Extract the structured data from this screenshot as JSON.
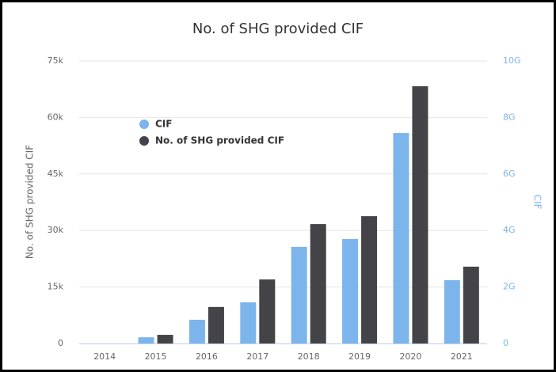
{
  "chart_data": {
    "type": "bar",
    "title": "No. of SHG provided CIF",
    "categories": [
      "2014",
      "2015",
      "2016",
      "2017",
      "2018",
      "2019",
      "2020",
      "2021"
    ],
    "ylabel": "No. of SHG provided CIF",
    "y2label": "CIF",
    "series": [
      {
        "name": "CIF",
        "color": "#7cb5ec",
        "axis": "y2",
        "values": [
          0,
          220000000,
          840000000,
          1460000000,
          3420000000,
          3700000000,
          7450000000,
          2240000000
        ]
      },
      {
        "name": "No. of SHG provided CIF",
        "color": "#434348",
        "values": [
          0,
          2300,
          9700,
          17000,
          31700,
          33800,
          68300,
          20400
        ]
      }
    ],
    "ylim": [
      0,
      75000
    ],
    "yticks": [
      0,
      {
        "value": 15000,
        "label": "15k"
      },
      {
        "value": 30000,
        "label": "30k"
      },
      {
        "value": 45000,
        "label": "45k"
      },
      {
        "value": 60000,
        "label": "60k"
      },
      {
        "value": 75000,
        "label": "75k"
      }
    ],
    "y2lim": [
      0,
      10000000000
    ],
    "y2ticks": [
      0,
      {
        "value": 2000000000,
        "label": "2G"
      },
      {
        "value": 4000000000,
        "label": "4G"
      },
      {
        "value": 6000000000,
        "label": "6G"
      },
      {
        "value": 8000000000,
        "label": "8G"
      },
      {
        "value": 10000000000,
        "label": "10G"
      }
    ],
    "grid": true,
    "legend": "top-left"
  }
}
